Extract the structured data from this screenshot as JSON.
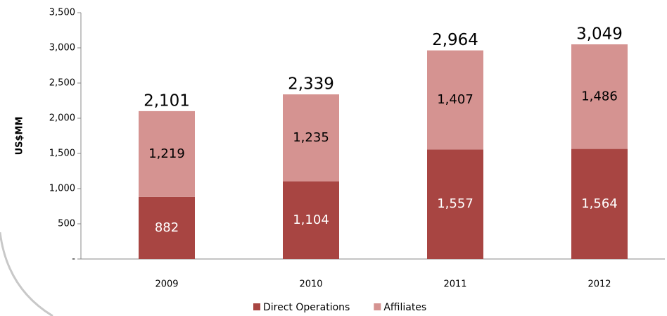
{
  "chart_data": {
    "type": "stacked_bar",
    "y_label": "US$MM",
    "categories": [
      "2009",
      "2010",
      "2011",
      "2012"
    ],
    "series": [
      {
        "name": "Direct Operations",
        "color": "#a84542",
        "label_color": "#ffffff",
        "values": [
          882,
          1104,
          1557,
          1564
        ],
        "value_labels": [
          "882",
          "1,104",
          "1,557",
          "1,564"
        ]
      },
      {
        "name": "Affiliates",
        "color": "#d59391",
        "label_color": "#000000",
        "values": [
          1219,
          1235,
          1407,
          1486
        ],
        "value_labels": [
          "1,219",
          "1,235",
          "1,407",
          "1,486"
        ]
      }
    ],
    "totals": [
      2101,
      2339,
      2964,
      3049
    ],
    "total_labels": [
      "2,101",
      "2,339",
      "2,964",
      "3,049"
    ],
    "ylim": [
      0,
      3500
    ],
    "yticks": [
      {
        "value": 0,
        "label": "-"
      },
      500,
      {
        "value": 1000,
        "label": "1,000"
      },
      {
        "value": 1500,
        "label": "1,500"
      },
      {
        "value": 2000,
        "label": "2,000"
      },
      {
        "value": 2500,
        "label": "2,500"
      },
      {
        "value": 3000,
        "label": "3,000"
      },
      {
        "value": 3500,
        "label": "3,500"
      }
    ],
    "grid": false,
    "legend": "bottom"
  }
}
